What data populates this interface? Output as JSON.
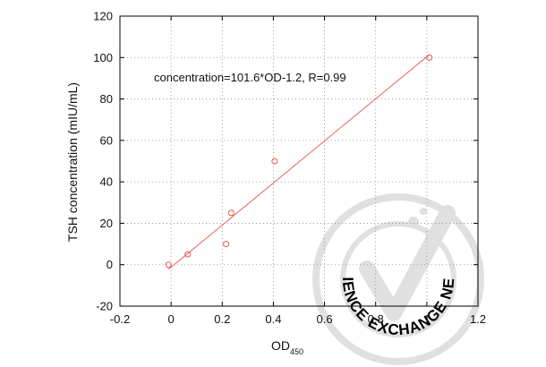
{
  "chart_data": {
    "type": "scatter",
    "xlabel": "OD",
    "xlabel_subscript": "450",
    "ylabel": "TSH concentration (mIU/mL)",
    "annotation": "concentration=101.6*OD-1.2,   R=0.99",
    "xlim": [
      -0.2,
      1.2
    ],
    "ylim": [
      -20,
      120
    ],
    "x_ticks": [
      -0.2,
      0,
      0.2,
      0.4,
      0.6,
      0.8,
      1,
      1.2
    ],
    "x_tick_labels": [
      "-0.2",
      "0",
      "0.2",
      "0.4",
      "0.6",
      "0.8",
      "1",
      "1.2"
    ],
    "y_ticks": [
      -20,
      0,
      20,
      40,
      60,
      80,
      100,
      120
    ],
    "y_tick_labels": [
      "-20",
      "0",
      "20",
      "40",
      "60",
      "80",
      "100",
      "120"
    ],
    "grid": true,
    "grid_style": "dotted",
    "series": [
      {
        "points": [
          {
            "x": -0.01,
            "y": 0
          },
          {
            "x": 0.065,
            "y": 5
          },
          {
            "x": 0.215,
            "y": 10
          },
          {
            "x": 0.235,
            "y": 25
          },
          {
            "x": 0.405,
            "y": 50
          },
          {
            "x": 1.01,
            "y": 100
          }
        ],
        "marker": "circle",
        "marker_color": "#e8554e"
      }
    ],
    "fit_line": {
      "slope": 101.6,
      "intercept": -1.2,
      "x_range": [
        -0.01,
        1.01
      ],
      "color": "#e8554e"
    }
  },
  "watermark": {
    "text": "THE SCIENCE EXCHANGE NETWORK",
    "color": "#dcdcdc",
    "icon": "checkmark-flask-icon"
  }
}
